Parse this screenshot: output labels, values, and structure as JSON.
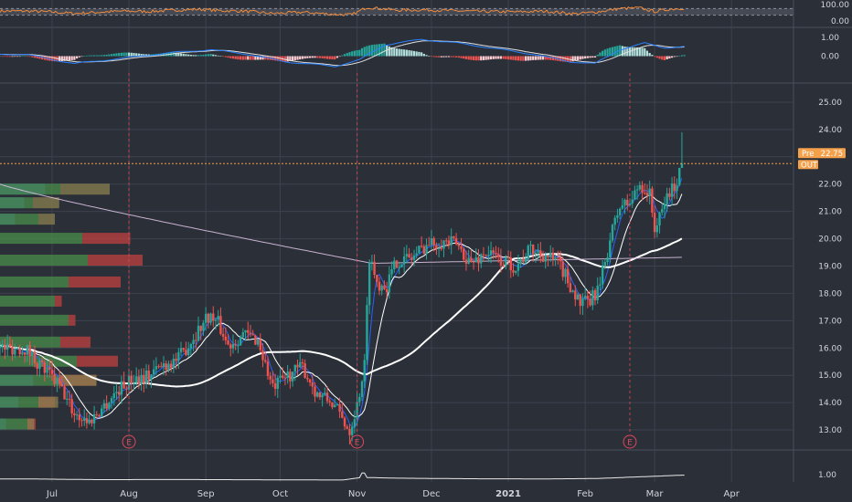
{
  "chart_data": {
    "type": "candlestick",
    "x_axis": {
      "labels": [
        {
          "label": "Jul",
          "day": 11
        },
        {
          "label": "Aug",
          "day": 42
        },
        {
          "label": "Sep",
          "day": 73
        },
        {
          "label": "Oct",
          "day": 103
        },
        {
          "label": "Nov",
          "day": 134
        },
        {
          "label": "Dec",
          "day": 164
        },
        {
          "label": "2021",
          "day": 195,
          "bold": true
        },
        {
          "label": "Feb",
          "day": 226
        },
        {
          "label": "Mar",
          "day": 254
        },
        {
          "label": "Apr",
          "day": 285
        }
      ],
      "range": [
        -10,
        310
      ]
    },
    "price_axis": {
      "range": [
        12.3,
        25.6
      ],
      "ticks": [
        "13.00",
        "14.00",
        "15.00",
        "16.00",
        "17.00",
        "18.00",
        "19.00",
        "20.00",
        "21.00",
        "22.00",
        "23.00",
        "24.00",
        "25.00"
      ]
    },
    "rsi_axis": {
      "range": [
        0,
        100
      ],
      "ticks": [
        "100.00",
        "0.00"
      ],
      "band": [
        30,
        70
      ]
    },
    "macd_axis": {
      "range": [
        -1.3,
        1.4
      ],
      "ticks": [
        "1.00",
        "0.00"
      ]
    },
    "volume_axis": {
      "range": [
        0,
        4
      ],
      "ticks": [
        "1.00"
      ]
    },
    "price_series": [
      [
        0,
        16.0
      ],
      [
        8,
        15.2
      ],
      [
        14,
        14.6
      ],
      [
        20,
        13.6
      ],
      [
        26,
        13.3
      ],
      [
        32,
        13.9
      ],
      [
        38,
        14.5
      ],
      [
        44,
        14.9
      ],
      [
        50,
        15.0
      ],
      [
        56,
        15.4
      ],
      [
        62,
        15.6
      ],
      [
        68,
        16.4
      ],
      [
        74,
        17.2
      ],
      [
        78,
        16.9
      ],
      [
        82,
        16.1
      ],
      [
        88,
        16.5
      ],
      [
        94,
        16.3
      ],
      [
        100,
        14.5
      ],
      [
        106,
        15.0
      ],
      [
        112,
        15.3
      ],
      [
        118,
        14.3
      ],
      [
        124,
        14.0
      ],
      [
        128,
        13.4
      ],
      [
        131,
        13.0
      ],
      [
        134,
        13.9
      ],
      [
        137,
        15.4
      ],
      [
        139,
        19.4
      ],
      [
        142,
        18.4
      ],
      [
        146,
        18.3
      ],
      [
        150,
        19.2
      ],
      [
        156,
        19.3
      ],
      [
        162,
        19.8
      ],
      [
        168,
        19.9
      ],
      [
        174,
        19.8
      ],
      [
        180,
        19.1
      ],
      [
        186,
        19.5
      ],
      [
        192,
        19.2
      ],
      [
        198,
        19.0
      ],
      [
        204,
        19.6
      ],
      [
        210,
        19.4
      ],
      [
        216,
        19.0
      ],
      [
        220,
        18.3
      ],
      [
        224,
        17.6
      ],
      [
        228,
        17.7
      ],
      [
        232,
        18.3
      ],
      [
        236,
        20.0
      ],
      [
        240,
        21.2
      ],
      [
        244,
        21.3
      ],
      [
        248,
        22.0
      ],
      [
        252,
        21.6
      ],
      [
        254,
        20.4
      ],
      [
        256,
        20.7
      ],
      [
        259,
        21.6
      ],
      [
        262,
        21.9
      ],
      [
        265,
        22.8
      ]
    ],
    "annotations": {
      "last_price": 22.75,
      "price_tag": "22.75",
      "pre_label": "Pre",
      "out_label": "OUT",
      "high_wick": 23.9,
      "earnings_label": "E",
      "earnings_days": [
        42,
        134,
        244
      ]
    },
    "moving_averages": [
      {
        "color": "#2962ff",
        "period": 5
      },
      {
        "color": "#ffffff",
        "period": 11
      },
      {
        "color": "#ffffff",
        "period": 60,
        "width": 2
      },
      {
        "color": "#d8c0e0",
        "period": 200
      }
    ],
    "volume_profile": [
      {
        "price": 21.8,
        "up": 0.22,
        "down": 0.0,
        "bar": 0.3
      },
      {
        "price": 21.3,
        "up": 0.12,
        "down": 0.0,
        "bar": 0.16
      },
      {
        "price": 20.7,
        "up": 0.14,
        "down": 0.0,
        "bar": 0.1
      },
      {
        "price": 20.0,
        "up": 0.3,
        "down": 0.35,
        "bar": 0.0
      },
      {
        "price": 19.2,
        "up": 0.32,
        "down": 0.4,
        "bar": 0.0
      },
      {
        "price": 18.4,
        "up": 0.25,
        "down": 0.38,
        "bar": 0.0
      },
      {
        "price": 17.7,
        "up": 0.2,
        "down": 0.05,
        "bar": 0.0
      },
      {
        "price": 17.0,
        "up": 0.25,
        "down": 0.05,
        "bar": 0.0
      },
      {
        "price": 16.2,
        "up": 0.22,
        "down": 0.22,
        "bar": 0.0
      },
      {
        "price": 15.5,
        "up": 0.28,
        "down": 0.3,
        "bar": 0.0
      },
      {
        "price": 14.8,
        "up": 0.22,
        "down": 0.26,
        "bar": 0.22
      },
      {
        "price": 14.0,
        "up": 0.14,
        "down": 0.12,
        "bar": 0.12
      },
      {
        "price": 13.2,
        "up": 0.1,
        "down": 0.06,
        "bar": 0.04
      }
    ],
    "rsi_series": [
      [
        0,
        55
      ],
      [
        10,
        50
      ],
      [
        20,
        40
      ],
      [
        30,
        48
      ],
      [
        40,
        55
      ],
      [
        50,
        52
      ],
      [
        60,
        60
      ],
      [
        70,
        66
      ],
      [
        78,
        58
      ],
      [
        88,
        55
      ],
      [
        100,
        40
      ],
      [
        112,
        48
      ],
      [
        124,
        36
      ],
      [
        132,
        32
      ],
      [
        138,
        78
      ],
      [
        150,
        60
      ],
      [
        162,
        62
      ],
      [
        174,
        56
      ],
      [
        186,
        52
      ],
      [
        198,
        50
      ],
      [
        210,
        54
      ],
      [
        222,
        38
      ],
      [
        230,
        48
      ],
      [
        240,
        70
      ],
      [
        248,
        74
      ],
      [
        254,
        52
      ],
      [
        260,
        66
      ],
      [
        265,
        72
      ]
    ],
    "macd_series": [
      [
        0,
        0.1
      ],
      [
        20,
        -0.4
      ],
      [
        40,
        -0.1
      ],
      [
        60,
        0.2
      ],
      [
        75,
        0.35
      ],
      [
        90,
        0.1
      ],
      [
        105,
        -0.3
      ],
      [
        125,
        -0.55
      ],
      [
        135,
        -0.2
      ],
      [
        145,
        0.6
      ],
      [
        160,
        0.9
      ],
      [
        175,
        0.7
      ],
      [
        190,
        0.4
      ],
      [
        205,
        0.1
      ],
      [
        220,
        -0.3
      ],
      [
        230,
        -0.4
      ],
      [
        240,
        0.35
      ],
      [
        250,
        0.7
      ],
      [
        258,
        0.45
      ],
      [
        265,
        0.5
      ]
    ],
    "volume_series": [
      [
        0,
        0.4
      ],
      [
        30,
        0.3
      ],
      [
        60,
        0.32
      ],
      [
        100,
        0.28
      ],
      [
        128,
        0.25
      ],
      [
        136,
        0.6
      ],
      [
        150,
        0.5
      ],
      [
        180,
        0.42
      ],
      [
        210,
        0.4
      ],
      [
        230,
        0.45
      ],
      [
        250,
        0.7
      ],
      [
        265,
        0.9
      ]
    ],
    "colors": {
      "background": "#2b2f38",
      "grid": "#3d424e",
      "bull": "#26a69a",
      "bear": "#ef5350",
      "price_line": "#f5a04b",
      "tag_bg": "#f5a04b",
      "earnings": "#e0485a",
      "rsi_line": "#f08a3c",
      "macd_line": "#2a82ff",
      "signal_line": "#e0e0e0"
    }
  }
}
